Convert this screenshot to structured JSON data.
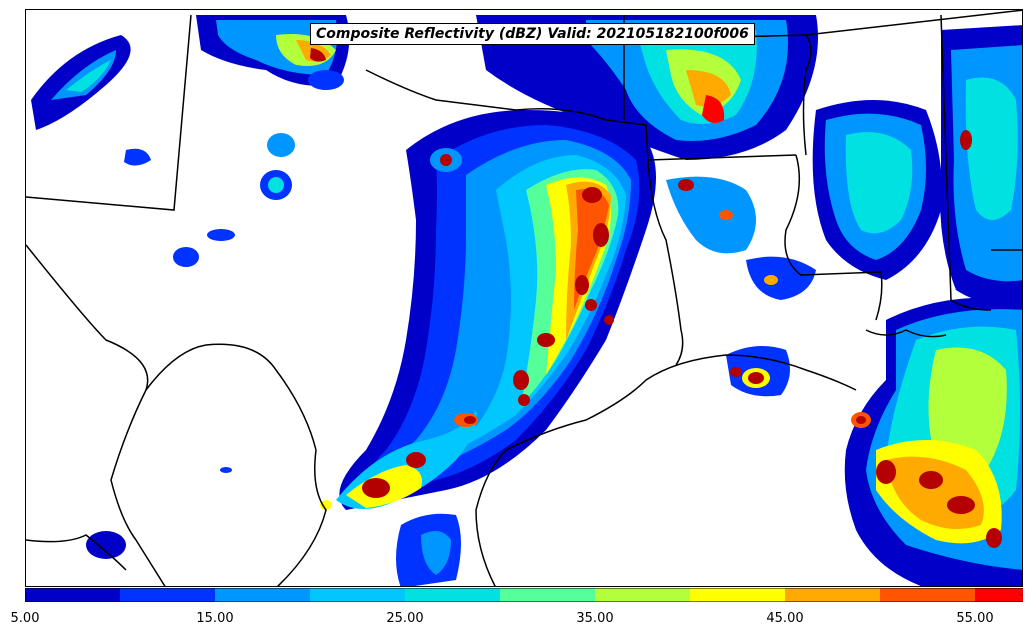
{
  "title": "Composite Reflectivity (dBZ) Valid: 202105182100f006",
  "colorbar": {
    "colors": [
      "#0000c8",
      "#0033ff",
      "#0096ff",
      "#00c8ff",
      "#00e1e1",
      "#55ff9a",
      "#b4ff3c",
      "#ffff00",
      "#ffaa00",
      "#ff5500",
      "#ff0000",
      "#b40000"
    ],
    "extend_color": "#a00000",
    "ticks": [
      "5.00",
      "15.00",
      "25.00",
      "35.00",
      "45.00",
      "55.00"
    ]
  }
}
